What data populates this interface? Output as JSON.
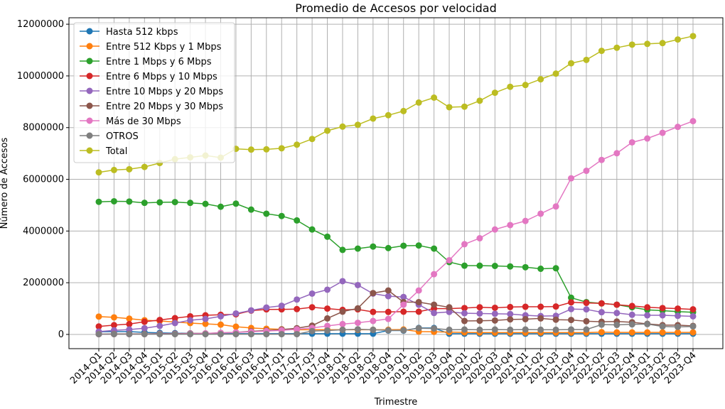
{
  "chart_data": {
    "type": "line",
    "title": "Promedio de Accesos por velocidad",
    "xlabel": "Trimestre",
    "ylabel": "Número de Accesos",
    "ylim": [
      -550000,
      12250000
    ],
    "yticks": [
      0,
      2000000,
      4000000,
      6000000,
      8000000,
      10000000,
      12000000
    ],
    "ytick_labels": [
      "0",
      "2000000",
      "4000000",
      "6000000",
      "8000000",
      "10000000",
      "12000000"
    ],
    "grid": true,
    "legend_position": "top-left",
    "categories": [
      "2014-Q1",
      "2014-Q2",
      "2014-Q3",
      "2014-Q4",
      "2015-Q1",
      "2015-Q2",
      "2015-Q3",
      "2015-Q4",
      "2016-Q1",
      "2016-Q2",
      "2016-Q3",
      "2016-Q4",
      "2017-Q1",
      "2017-Q2",
      "2017-Q3",
      "2017-Q4",
      "2018-Q1",
      "2018-Q2",
      "2018-Q3",
      "2018-Q4",
      "2019-Q1",
      "2019-Q2",
      "2019-Q3",
      "2019-Q4",
      "2020-Q1",
      "2020-Q2",
      "2020-Q3",
      "2020-Q4",
      "2021-Q1",
      "2021-Q2",
      "2021-Q3",
      "2021-Q4",
      "2022-Q1",
      "2022-Q2",
      "2022-Q3",
      "2022-Q4",
      "2023-Q1",
      "2023-Q2",
      "2023-Q3",
      "2023-Q4"
    ],
    "series": [
      {
        "name": "Hasta 512 kbps",
        "color": "#1f77b4",
        "values": [
          100000,
          110000,
          110000,
          80000,
          60000,
          50000,
          40000,
          30000,
          30000,
          30000,
          30000,
          30000,
          30000,
          30000,
          30000,
          30000,
          30000,
          30000,
          30000,
          150000,
          150000,
          250000,
          250000,
          30000,
          30000,
          30000,
          30000,
          30000,
          30000,
          30000,
          30000,
          30000,
          30000,
          30000,
          30000,
          30000,
          30000,
          30000,
          30000,
          30000
        ]
      },
      {
        "name": "Entre 512 Kbps y 1 Mbps",
        "color": "#ff7f0e",
        "values": [
          690000,
          660000,
          610000,
          550000,
          520000,
          480000,
          440000,
          410000,
          380000,
          300000,
          250000,
          220000,
          200000,
          180000,
          180000,
          180000,
          180000,
          180000,
          180000,
          180000,
          190000,
          110000,
          100000,
          90000,
          80000,
          70000,
          70000,
          70000,
          70000,
          70000,
          70000,
          70000,
          70000,
          90000,
          80000,
          80000,
          80000,
          80000,
          80000,
          80000
        ]
      },
      {
        "name": "Entre 1 Mbps y 6 Mbps",
        "color": "#2ca02c",
        "values": [
          5130000,
          5150000,
          5140000,
          5090000,
          5110000,
          5120000,
          5090000,
          5050000,
          4940000,
          5060000,
          4830000,
          4670000,
          4580000,
          4410000,
          4060000,
          3780000,
          3270000,
          3320000,
          3400000,
          3340000,
          3430000,
          3440000,
          3320000,
          2800000,
          2660000,
          2660000,
          2650000,
          2630000,
          2600000,
          2540000,
          2560000,
          1420000,
          1250000,
          1200000,
          1150000,
          1050000,
          950000,
          920000,
          880000,
          860000
        ]
      },
      {
        "name": "Entre 6 Mbps y 10 Mbps",
        "color": "#d62728",
        "values": [
          310000,
          360000,
          400000,
          490000,
          560000,
          630000,
          700000,
          740000,
          760000,
          780000,
          920000,
          970000,
          970000,
          980000,
          1050000,
          1000000,
          950000,
          970000,
          870000,
          870000,
          880000,
          880000,
          1000000,
          1000000,
          1020000,
          1050000,
          1030000,
          1060000,
          1070000,
          1070000,
          1080000,
          1240000,
          1220000,
          1200000,
          1150000,
          1100000,
          1050000,
          1020000,
          1000000,
          970000
        ]
      },
      {
        "name": "Entre 10 Mbps y 20 Mbps",
        "color": "#9467bd",
        "values": [
          110000,
          160000,
          190000,
          240000,
          330000,
          440000,
          550000,
          600000,
          700000,
          810000,
          930000,
          1040000,
          1110000,
          1350000,
          1580000,
          1730000,
          2060000,
          1910000,
          1580000,
          1480000,
          1450000,
          1150000,
          830000,
          870000,
          820000,
          810000,
          800000,
          790000,
          740000,
          710000,
          720000,
          980000,
          970000,
          860000,
          830000,
          760000,
          740000,
          740000,
          720000,
          700000
        ]
      },
      {
        "name": "Entre 20 Mbps y 30 Mbps",
        "color": "#8c564b",
        "values": [
          10000,
          20000,
          20000,
          20000,
          30000,
          30000,
          40000,
          40000,
          60000,
          80000,
          120000,
          150000,
          190000,
          240000,
          340000,
          620000,
          880000,
          1010000,
          1600000,
          1700000,
          1250000,
          1250000,
          1150000,
          1050000,
          520000,
          530000,
          540000,
          580000,
          590000,
          620000,
          570000,
          560000,
          510000,
          490000,
          500000,
          470000,
          410000,
          360000,
          360000,
          330000
        ]
      },
      {
        "name": "Más de 30 Mbps",
        "color": "#e377c2",
        "values": [
          10000,
          10000,
          10000,
          10000,
          20000,
          20000,
          30000,
          40000,
          60000,
          80000,
          100000,
          130000,
          160000,
          200000,
          250000,
          330000,
          400000,
          450000,
          520000,
          600000,
          1150000,
          1700000,
          2330000,
          2870000,
          3490000,
          3720000,
          4060000,
          4230000,
          4390000,
          4670000,
          4950000,
          6040000,
          6330000,
          6750000,
          7010000,
          7430000,
          7580000,
          7800000,
          8030000,
          8250000
        ]
      },
      {
        "name": "OTROS",
        "color": "#7f7f7f",
        "values": [
          10000,
          10000,
          10000,
          10000,
          10000,
          10000,
          10000,
          10000,
          10000,
          10000,
          10000,
          10000,
          10000,
          10000,
          130000,
          150000,
          180000,
          200000,
          180000,
          160000,
          160000,
          240000,
          230000,
          180000,
          190000,
          180000,
          190000,
          180000,
          190000,
          180000,
          180000,
          190000,
          190000,
          380000,
          370000,
          390000,
          400000,
          310000,
          290000,
          310000
        ]
      },
      {
        "name": "Total",
        "color": "#bcbd22",
        "values": [
          6270000,
          6360000,
          6390000,
          6480000,
          6630000,
          6780000,
          6850000,
          6920000,
          6840000,
          7180000,
          7150000,
          7160000,
          7200000,
          7340000,
          7560000,
          7880000,
          8040000,
          8110000,
          8350000,
          8480000,
          8640000,
          8970000,
          9160000,
          8790000,
          8810000,
          9040000,
          9350000,
          9580000,
          9650000,
          9870000,
          10090000,
          10490000,
          10620000,
          10970000,
          11090000,
          11210000,
          11240000,
          11270000,
          11410000,
          11540000
        ]
      }
    ]
  }
}
